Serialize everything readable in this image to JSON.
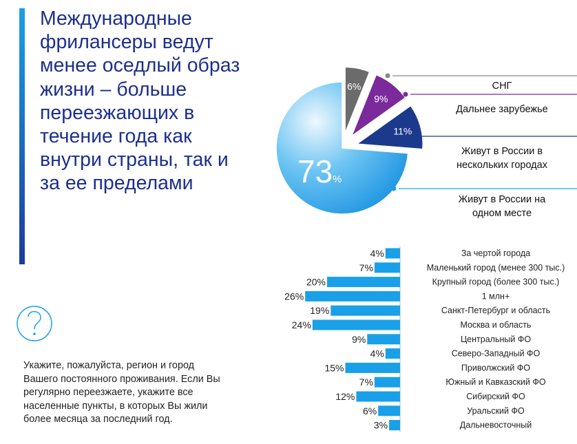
{
  "headline": "Международные фрилансеры ведут менее оседлый образ жизни – больше переезжающих в течение года как внутри страны, так и за ее пределами",
  "question": "Укажите, пожалуйста, регион и город Вашего постоянного проживания. Если Вы регулярно переезжаете, укажите все населенные пункты, в которых Вы жили более месяца за последний год.",
  "colors": {
    "accent_dark": "#1c3a9c",
    "accent_light": "#1aa0e8",
    "bar": "#1aa0e8"
  },
  "chart_data": [
    {
      "type": "pie",
      "slices": [
        {
          "label": "Живут в России на одном месте",
          "value": 73,
          "display": "73",
          "unit": "%",
          "color": "#1aa0e8"
        },
        {
          "label": "СНГ",
          "value": 6,
          "display": "6%",
          "color": "#6b6b6b"
        },
        {
          "label": "Дальнее зарубежье",
          "value": 9,
          "display": "9%",
          "color": "#7a2a9a"
        },
        {
          "label": "Живут в России в нескольких городах",
          "value": 11,
          "display": "11%",
          "color": "#1c3a8c"
        }
      ],
      "legend": [
        {
          "lines": [
            "СНГ"
          ],
          "color": "#8a8a8a"
        },
        {
          "lines": [
            "Дальнее зарубежье"
          ],
          "color": "#7a2a9a"
        },
        {
          "lines": [
            "Живут в России в",
            "нескольких городах"
          ],
          "color": "#1c3a8c"
        },
        {
          "lines": [
            "Живут в России на",
            "одном месте"
          ],
          "color": "#1aa0e8"
        }
      ]
    },
    {
      "type": "bar",
      "orientation": "horizontal",
      "categories": [
        "За чертой города",
        "Маленький город (менее 300 тыс.)",
        "Крупный город (более 300 тыс.)",
        "1 млн+",
        "Санкт-Петербург и область",
        "Москва и область",
        "Центральный ФО",
        "Северо-Западный ФО",
        "Приволжский ФО",
        "Южный и Кавказский ФО",
        "Сибирский ФО",
        "Уральский ФО",
        "Дальневосточный"
      ],
      "values": [
        4,
        7,
        20,
        26,
        19,
        24,
        9,
        4,
        15,
        7,
        12,
        6,
        3
      ],
      "value_labels": [
        "4%",
        "7%",
        "20%",
        "26%",
        "19%",
        "24%",
        "9%",
        "4%",
        "15%",
        "7%",
        "12%",
        "6%",
        "3%"
      ],
      "color": "#1aa0e8"
    }
  ]
}
